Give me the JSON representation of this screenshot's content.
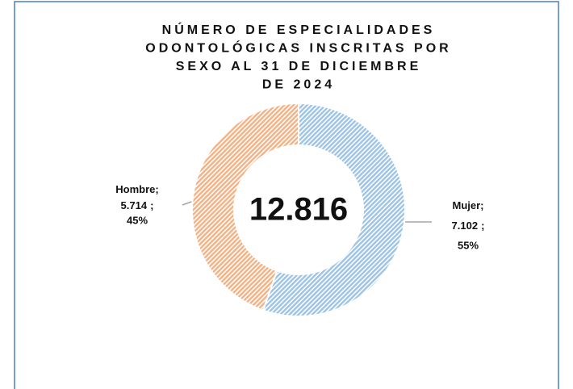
{
  "chart_data": {
    "type": "donut",
    "title": [
      "NÚMERO DE ESPECIALIDADES",
      "ODONTOLÓGICAS INSCRITAS POR",
      "SEXO AL 31 DE DICIEMBRE",
      "DE 2024"
    ],
    "center_label": "12.816",
    "categories": [
      "Mujer",
      "Hombre"
    ],
    "values": [
      7102,
      5714
    ],
    "value_labels": [
      "7.102",
      "5.714"
    ],
    "percentages": [
      55,
      45
    ],
    "percentage_labels": [
      "55%",
      "45%"
    ],
    "label_separator": ";",
    "colors": [
      "#9dc3e6",
      "#f4b183"
    ]
  }
}
